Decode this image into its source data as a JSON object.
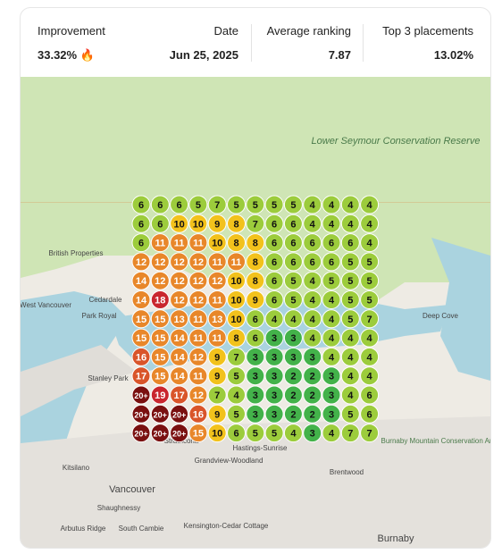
{
  "header": {
    "stats": [
      {
        "label": "Improvement",
        "value": "33.32%"
      },
      {
        "label": "Date",
        "value": "Jun 25, 2025"
      },
      {
        "label": "Average ranking",
        "value": "7.87"
      },
      {
        "label": "Top 3 placements",
        "value": "13.02%"
      }
    ]
  },
  "map": {
    "labels": [
      "Lower Seymour Conservation Reserve",
      "British Properties",
      "West Vancouver",
      "Park Royal",
      "Cedardale",
      "Deep Cove",
      "Stanley Park",
      "Strathcona",
      "Hastings-Sunrise",
      "Grandview-Woodland",
      "Kitsilano",
      "Vancouver",
      "Shaughnessy",
      "Arbutus Ridge",
      "South Cambie",
      "Kensington-Cedar Cottage",
      "Brentwood",
      "Burnaby",
      "Burnaby Mountain Conservation Area"
    ]
  },
  "grid": {
    "rows": [
      [
        6,
        6,
        6,
        5,
        7,
        5,
        5,
        5,
        5,
        4,
        4,
        4,
        4
      ],
      [
        6,
        6,
        10,
        10,
        9,
        8,
        7,
        6,
        6,
        4,
        4,
        4,
        4
      ],
      [
        6,
        11,
        11,
        11,
        10,
        8,
        8,
        6,
        6,
        6,
        6,
        6,
        4
      ],
      [
        12,
        12,
        12,
        12,
        11,
        11,
        8,
        6,
        6,
        6,
        6,
        5,
        5
      ],
      [
        14,
        12,
        12,
        12,
        12,
        10,
        8,
        6,
        5,
        4,
        5,
        5,
        5
      ],
      [
        14,
        18,
        12,
        12,
        11,
        10,
        9,
        6,
        5,
        4,
        4,
        5,
        5
      ],
      [
        15,
        15,
        13,
        11,
        13,
        10,
        6,
        4,
        4,
        4,
        4,
        5,
        7
      ],
      [
        15,
        15,
        14,
        11,
        11,
        8,
        6,
        3,
        3,
        4,
        4,
        4,
        4
      ],
      [
        16,
        15,
        14,
        12,
        9,
        7,
        3,
        3,
        3,
        3,
        4,
        4,
        4
      ],
      [
        17,
        15,
        14,
        11,
        9,
        5,
        3,
        3,
        2,
        2,
        3,
        4,
        4
      ],
      [
        "20+",
        19,
        17,
        12,
        7,
        4,
        3,
        3,
        2,
        2,
        3,
        4,
        6
      ],
      [
        "20+",
        "20+",
        "20+",
        16,
        9,
        5,
        3,
        3,
        2,
        2,
        3,
        5,
        6
      ],
      [
        "20+",
        "20+",
        "20+",
        15,
        10,
        6,
        5,
        5,
        4,
        3,
        4,
        7,
        7
      ]
    ]
  }
}
